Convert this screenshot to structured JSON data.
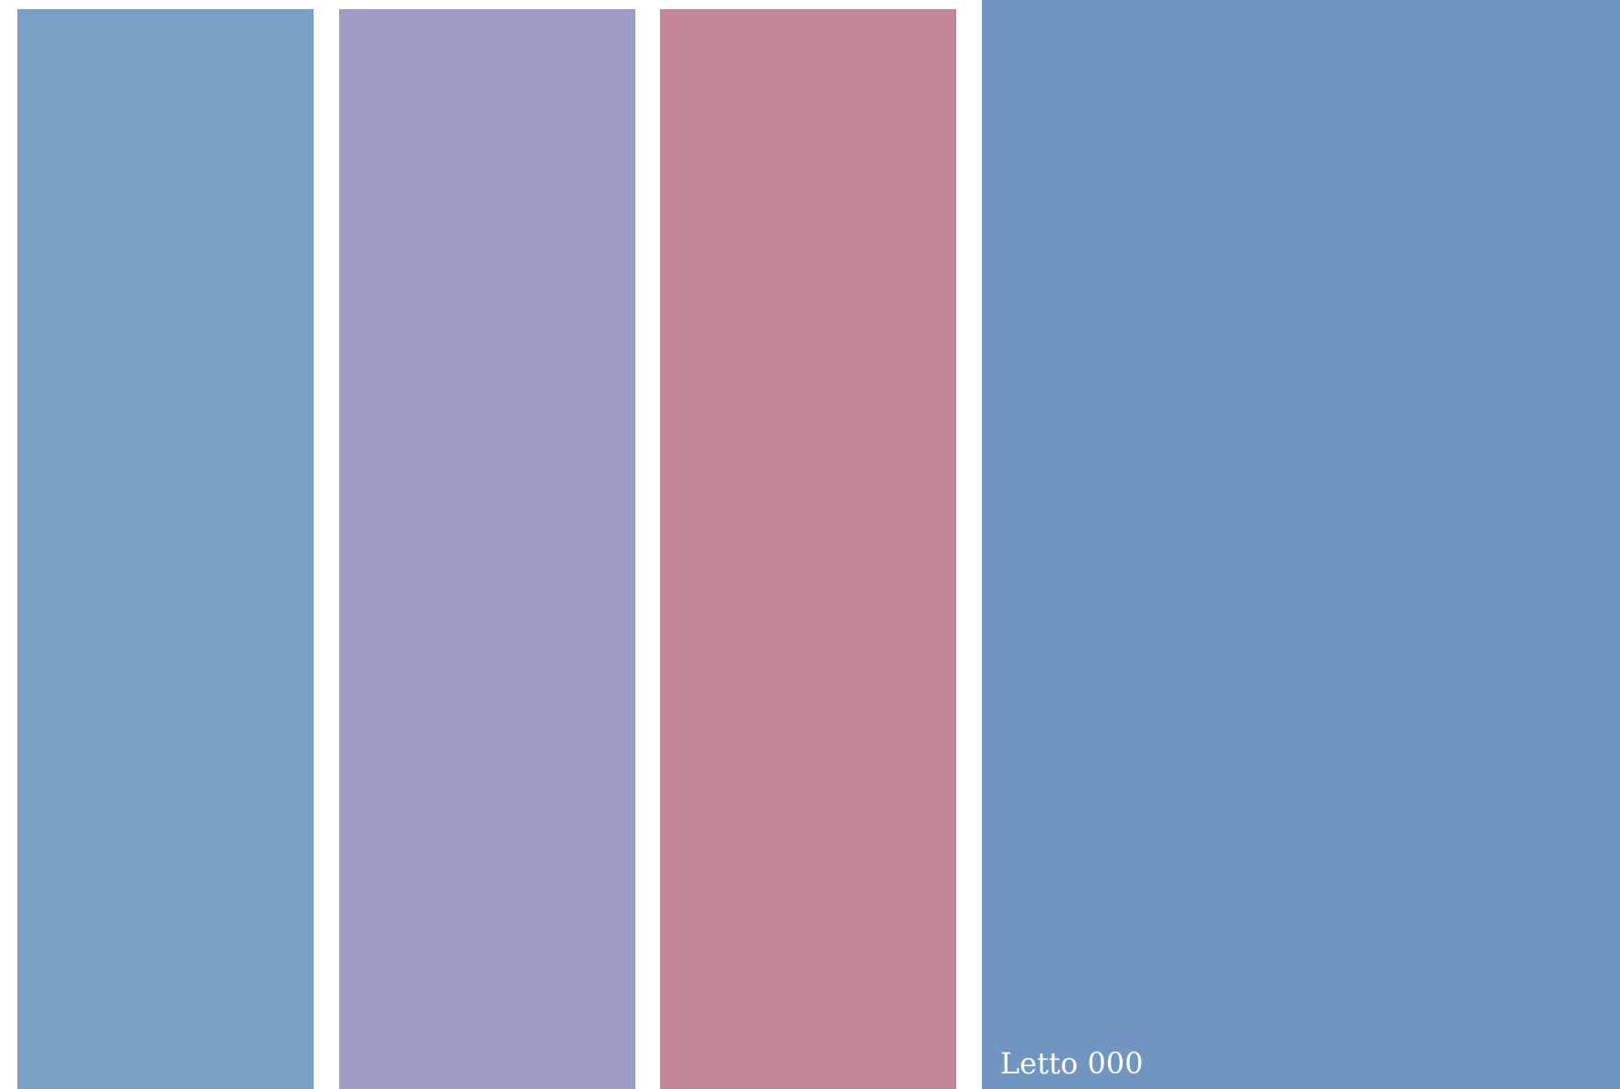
{
  "panels": [
    {
      "color": "#7aa0c7"
    },
    {
      "color": "#9d9cc4"
    },
    {
      "color": "#c28896"
    },
    {
      "color": "#6f95c0",
      "label": "Letto 000"
    }
  ]
}
